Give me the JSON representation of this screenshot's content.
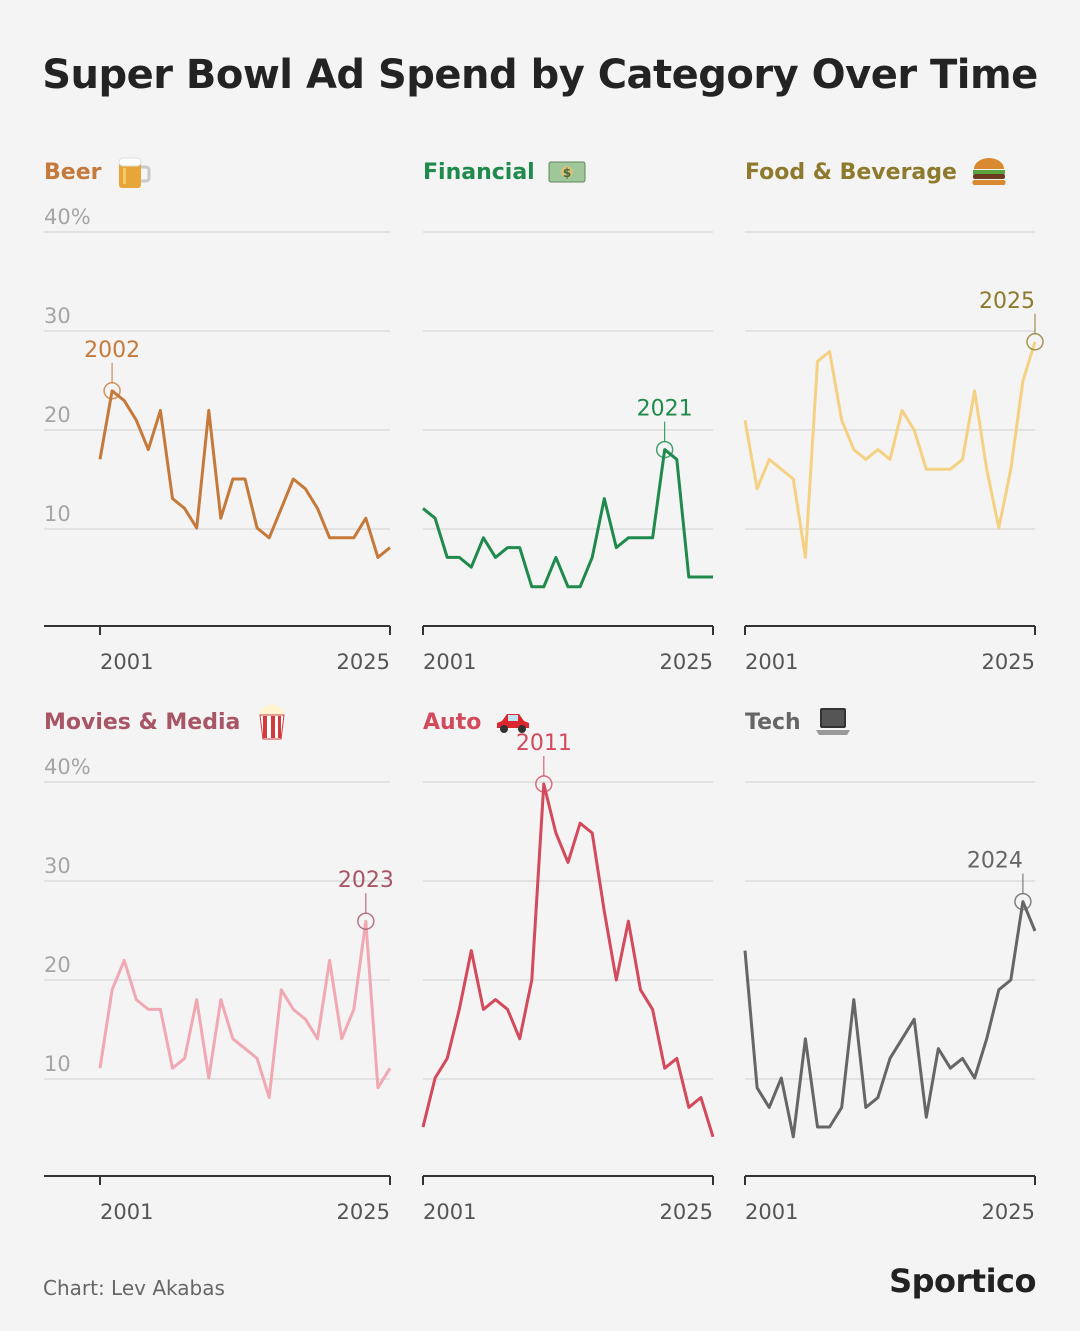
{
  "title": "Super Bowl Ad Spend by Category Over Time",
  "footer": {
    "credit": "Chart: Lev Akabas",
    "brand": "Sportico"
  },
  "y_tick_labels": [
    "40%",
    "30",
    "20",
    "10"
  ],
  "chart_data": [
    {
      "type": "line",
      "category": "Beer",
      "icon": "beer-mug-icon",
      "color": "#c57a3b",
      "x_start": 2001,
      "x_end": 2025,
      "x_tick_labels": [
        "2001",
        "2025"
      ],
      "ylim": [
        0,
        40
      ],
      "values": [
        17,
        24,
        23,
        21,
        18,
        22,
        13,
        12,
        10,
        22,
        11,
        15,
        15,
        10,
        9,
        12,
        15,
        14,
        12,
        9,
        9,
        9,
        11,
        7,
        8
      ],
      "annotation": {
        "year": 2002,
        "label": "2002"
      }
    },
    {
      "type": "line",
      "category": "Financial",
      "icon": "money-bill-icon",
      "color": "#1f8a4c",
      "x_start": 2001,
      "x_end": 2025,
      "x_tick_labels": [
        "2001",
        "2025"
      ],
      "ylim": [
        0,
        40
      ],
      "values": [
        12,
        11,
        7,
        7,
        6,
        9,
        7,
        8,
        8,
        4,
        4,
        7,
        4,
        4,
        7,
        13,
        8,
        9,
        9,
        9,
        18,
        17,
        5,
        5,
        5
      ],
      "annotation": {
        "year": 2021,
        "label": "2021"
      }
    },
    {
      "type": "line",
      "category": "Food & Beverage",
      "icon": "burger-icon",
      "color": "#f5d183",
      "label_color": "#8e7a2c",
      "x_start": 2001,
      "x_end": 2025,
      "x_tick_labels": [
        "2001",
        "2025"
      ],
      "ylim": [
        0,
        40
      ],
      "values": [
        21,
        14,
        17,
        16,
        15,
        7,
        27,
        28,
        21,
        18,
        17,
        18,
        17,
        22,
        20,
        16,
        16,
        16,
        17,
        24,
        16,
        10,
        16,
        25,
        29
      ],
      "annotation": {
        "year": 2025,
        "label": "2025"
      }
    },
    {
      "type": "line",
      "category": "Movies & Media",
      "icon": "popcorn-icon",
      "color": "#f0a9b3",
      "label_color": "#a85566",
      "x_start": 2001,
      "x_end": 2025,
      "x_tick_labels": [
        "2001",
        "2025"
      ],
      "ylim": [
        0,
        40
      ],
      "values": [
        11,
        19,
        22,
        18,
        17,
        17,
        11,
        12,
        18,
        10,
        18,
        14,
        13,
        12,
        8,
        19,
        17,
        16,
        14,
        22,
        14,
        17,
        26,
        9,
        11
      ],
      "annotation": {
        "year": 2023,
        "label": "2023"
      }
    },
    {
      "type": "line",
      "category": "Auto",
      "icon": "car-icon",
      "color": "#d24a5c",
      "x_start": 2001,
      "x_end": 2025,
      "x_tick_labels": [
        "2001",
        "2025"
      ],
      "ylim": [
        0,
        40
      ],
      "values": [
        5,
        10,
        12,
        17,
        23,
        17,
        18,
        17,
        14,
        20,
        40,
        35,
        32,
        36,
        35,
        27,
        20,
        26,
        19,
        17,
        11,
        12,
        7,
        8,
        4
      ],
      "annotation": {
        "year": 2011,
        "label": "2011"
      }
    },
    {
      "type": "line",
      "category": "Tech",
      "icon": "laptop-icon",
      "color": "#666666",
      "x_start": 2001,
      "x_end": 2025,
      "x_tick_labels": [
        "2001",
        "2025"
      ],
      "ylim": [
        0,
        40
      ],
      "values": [
        23,
        9,
        7,
        10,
        4,
        14,
        5,
        5,
        7,
        18,
        7,
        8,
        12,
        14,
        16,
        6,
        13,
        11,
        12,
        10,
        14,
        19,
        20,
        28,
        25
      ],
      "annotation": {
        "year": 2024,
        "label": "2024"
      }
    }
  ]
}
